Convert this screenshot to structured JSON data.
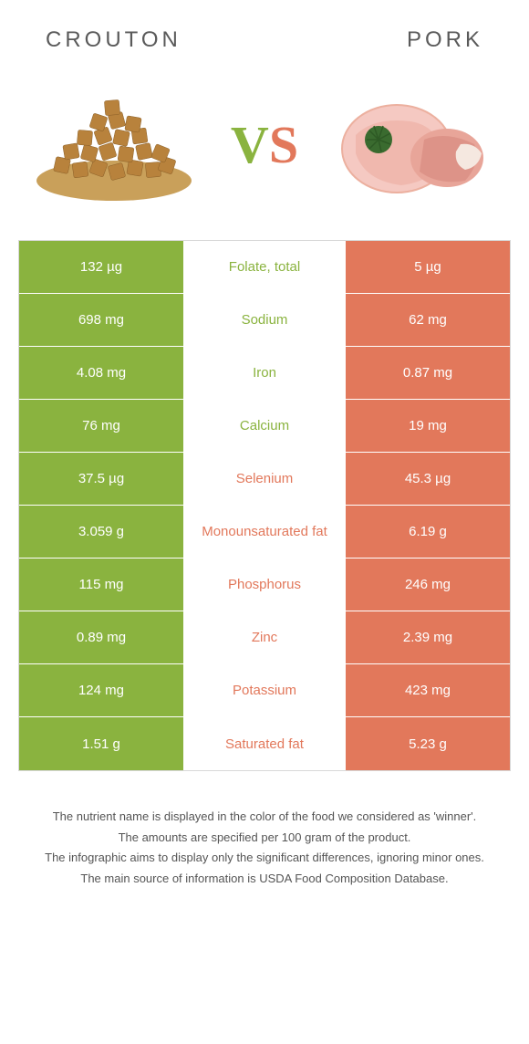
{
  "header": {
    "left_title": "CROUTON",
    "right_title": "PORK"
  },
  "vs": {
    "v": "V",
    "s": "S"
  },
  "colors": {
    "left": "#8ab33f",
    "right": "#e2785b",
    "border": "#d8d8d8",
    "text": "#5a5a5a",
    "background": "#ffffff"
  },
  "rows": [
    {
      "left": "132 µg",
      "label": "Folate, total",
      "right": "5 µg",
      "winner": "left"
    },
    {
      "left": "698 mg",
      "label": "Sodium",
      "right": "62 mg",
      "winner": "left"
    },
    {
      "left": "4.08 mg",
      "label": "Iron",
      "right": "0.87 mg",
      "winner": "left"
    },
    {
      "left": "76 mg",
      "label": "Calcium",
      "right": "19 mg",
      "winner": "left"
    },
    {
      "left": "37.5 µg",
      "label": "Selenium",
      "right": "45.3 µg",
      "winner": "right"
    },
    {
      "left": "3.059 g",
      "label": "Monounsaturated fat",
      "right": "6.19 g",
      "winner": "right"
    },
    {
      "left": "115 mg",
      "label": "Phosphorus",
      "right": "246 mg",
      "winner": "right"
    },
    {
      "left": "0.89 mg",
      "label": "Zinc",
      "right": "2.39 mg",
      "winner": "right"
    },
    {
      "left": "124 mg",
      "label": "Potassium",
      "right": "423 mg",
      "winner": "right"
    },
    {
      "left": "1.51 g",
      "label": "Saturated fat",
      "right": "5.23 g",
      "winner": "right"
    }
  ],
  "footnotes": [
    "The nutrient name is displayed in the color of the food we considered as 'winner'.",
    "The amounts are specified per 100 gram of the product.",
    "The infographic aims to display only the significant differences, ignoring minor ones.",
    "The main source of information is USDA Food Composition Database."
  ]
}
